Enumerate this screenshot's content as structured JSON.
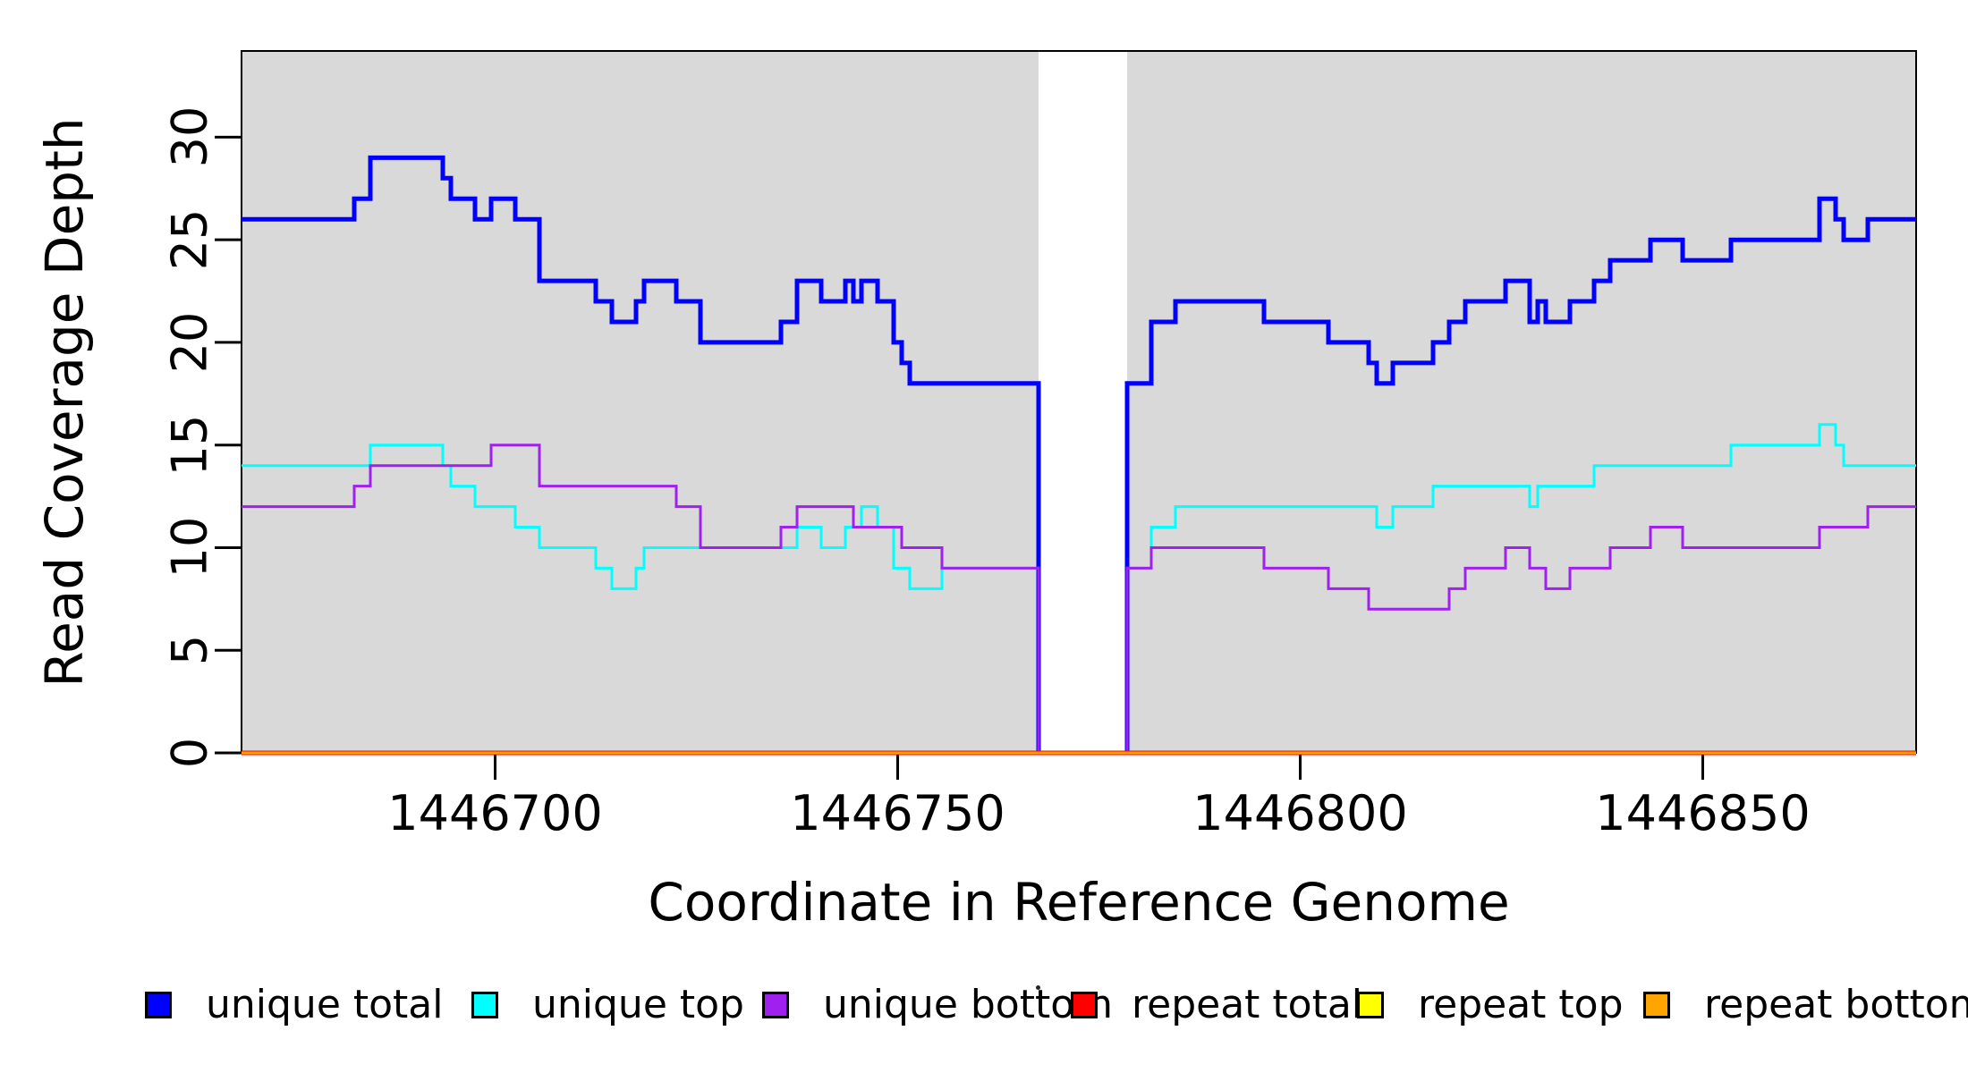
{
  "figure": {
    "xlabel": "Coordinate in Reference Genome",
    "ylabel": "Read Coverage Depth"
  },
  "axes": {
    "x_ticks": [
      {
        "value": 1446700,
        "label": "1446700"
      },
      {
        "value": 1446750,
        "label": "1446750"
      },
      {
        "value": 1446800,
        "label": "1446800"
      },
      {
        "value": 1446850,
        "label": "1446850"
      }
    ],
    "y_ticks": [
      {
        "value": 0,
        "label": "0"
      },
      {
        "value": 5,
        "label": "5"
      },
      {
        "value": 10,
        "label": "10"
      },
      {
        "value": 15,
        "label": "15"
      },
      {
        "value": 20,
        "label": "20"
      },
      {
        "value": 25,
        "label": "25"
      },
      {
        "value": 30,
        "label": "30"
      }
    ]
  },
  "legend": [
    {
      "label": "unique total",
      "color": "#0000FF"
    },
    {
      "label": "unique top",
      "color": "#00FFFF"
    },
    {
      "label": "unique bottom",
      "color": "#A020F0"
    },
    {
      "label": "repeat total",
      "color": "#FF0000"
    },
    {
      "label": "repeat top",
      "color": "#FFFF00"
    },
    {
      "label": "repeat bottom",
      "color": "#FFA500"
    }
  ],
  "chart_data": {
    "type": "line",
    "subtype": "step",
    "title": "",
    "xlabel": "Coordinate in Reference Genome",
    "ylabel": "Read Coverage Depth",
    "xlim": [
      1446668.5,
      1446876.5
    ],
    "ylim": [
      0,
      34.2
    ],
    "grid": false,
    "legend_position": "bottom",
    "panel_color": "#D9D9D9",
    "gap_band_x": [
      1446767.5,
      1446778.5
    ],
    "note": "All six series are step functions; runs are [start_coordinate, depth] and hold until the next run. unique total = unique top + unique bottom. Repeat series are 0 across the whole window.",
    "series": [
      {
        "name": "unique total",
        "color": "#0000FF",
        "width": 5,
        "runs": [
          [
            1446669,
            26
          ],
          [
            1446683,
            27
          ],
          [
            1446685,
            29
          ],
          [
            1446694,
            28
          ],
          [
            1446695,
            27
          ],
          [
            1446698,
            26
          ],
          [
            1446700,
            27
          ],
          [
            1446703,
            26
          ],
          [
            1446706,
            23
          ],
          [
            1446713,
            22
          ],
          [
            1446715,
            21
          ],
          [
            1446718,
            22
          ],
          [
            1446719,
            23
          ],
          [
            1446723,
            22
          ],
          [
            1446726,
            20
          ],
          [
            1446736,
            21
          ],
          [
            1446738,
            23
          ],
          [
            1446741,
            22
          ],
          [
            1446744,
            23
          ],
          [
            1446745,
            22
          ],
          [
            1446746,
            23
          ],
          [
            1446748,
            22
          ],
          [
            1446750,
            20
          ],
          [
            1446751,
            19
          ],
          [
            1446752,
            18
          ],
          [
            1446768,
            0
          ],
          [
            1446779,
            18
          ],
          [
            1446782,
            21
          ],
          [
            1446785,
            22
          ],
          [
            1446796,
            21
          ],
          [
            1446804,
            20
          ],
          [
            1446809,
            19
          ],
          [
            1446810,
            18
          ],
          [
            1446812,
            19
          ],
          [
            1446817,
            20
          ],
          [
            1446819,
            21
          ],
          [
            1446821,
            22
          ],
          [
            1446826,
            23
          ],
          [
            1446829,
            21
          ],
          [
            1446830,
            22
          ],
          [
            1446831,
            21
          ],
          [
            1446834,
            22
          ],
          [
            1446837,
            23
          ],
          [
            1446839,
            24
          ],
          [
            1446844,
            25
          ],
          [
            1446848,
            24
          ],
          [
            1446854,
            25
          ],
          [
            1446865,
            27
          ],
          [
            1446867,
            26
          ],
          [
            1446868,
            25
          ],
          [
            1446871,
            26
          ]
        ]
      },
      {
        "name": "unique top",
        "color": "#00FFFF",
        "width": 3,
        "runs": [
          [
            1446669,
            14
          ],
          [
            1446685,
            15
          ],
          [
            1446694,
            14
          ],
          [
            1446695,
            13
          ],
          [
            1446698,
            12
          ],
          [
            1446703,
            11
          ],
          [
            1446706,
            10
          ],
          [
            1446713,
            9
          ],
          [
            1446715,
            8
          ],
          [
            1446718,
            9
          ],
          [
            1446719,
            10
          ],
          [
            1446738,
            11
          ],
          [
            1446741,
            10
          ],
          [
            1446744,
            11
          ],
          [
            1446746,
            12
          ],
          [
            1446748,
            11
          ],
          [
            1446750,
            9
          ],
          [
            1446752,
            8
          ],
          [
            1446756,
            9
          ],
          [
            1446768,
            0
          ],
          [
            1446779,
            9
          ],
          [
            1446782,
            11
          ],
          [
            1446785,
            12
          ],
          [
            1446810,
            11
          ],
          [
            1446812,
            12
          ],
          [
            1446817,
            13
          ],
          [
            1446829,
            12
          ],
          [
            1446830,
            13
          ],
          [
            1446837,
            14
          ],
          [
            1446854,
            15
          ],
          [
            1446865,
            16
          ],
          [
            1446867,
            15
          ],
          [
            1446868,
            14
          ]
        ]
      },
      {
        "name": "unique bottom",
        "color": "#A020F0",
        "width": 3,
        "runs": [
          [
            1446669,
            12
          ],
          [
            1446683,
            13
          ],
          [
            1446685,
            14
          ],
          [
            1446700,
            15
          ],
          [
            1446706,
            13
          ],
          [
            1446723,
            12
          ],
          [
            1446726,
            10
          ],
          [
            1446736,
            11
          ],
          [
            1446738,
            12
          ],
          [
            1446745,
            11
          ],
          [
            1446751,
            10
          ],
          [
            1446756,
            9
          ],
          [
            1446768,
            0
          ],
          [
            1446779,
            9
          ],
          [
            1446782,
            10
          ],
          [
            1446796,
            9
          ],
          [
            1446804,
            8
          ],
          [
            1446809,
            7
          ],
          [
            1446819,
            8
          ],
          [
            1446821,
            9
          ],
          [
            1446826,
            10
          ],
          [
            1446829,
            9
          ],
          [
            1446831,
            8
          ],
          [
            1446834,
            9
          ],
          [
            1446839,
            10
          ],
          [
            1446844,
            11
          ],
          [
            1446848,
            10
          ],
          [
            1446865,
            11
          ],
          [
            1446871,
            12
          ]
        ]
      },
      {
        "name": "repeat total",
        "color": "#FF0000",
        "width": 5,
        "runs": [
          [
            1446669,
            0
          ]
        ]
      },
      {
        "name": "repeat top",
        "color": "#FFFF00",
        "width": 3,
        "runs": [
          [
            1446669,
            0
          ]
        ]
      },
      {
        "name": "repeat bottom",
        "color": "#FFA500",
        "width": 3,
        "runs": [
          [
            1446669,
            0
          ]
        ]
      }
    ]
  }
}
